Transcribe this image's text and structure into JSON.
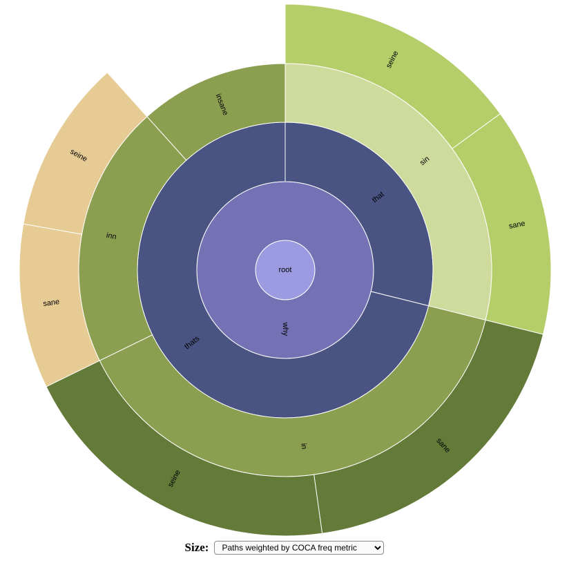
{
  "chart_data": {
    "type": "sunburst",
    "root": {
      "name": "root",
      "color": "#9c9ae0",
      "children": [
        {
          "name": "why",
          "color": "#7472b4",
          "children": [
            {
              "name": "that",
              "color": "#4a5483",
              "children": [
                {
                  "name": "sin",
                  "color": "#cfdb9c",
                  "children": [
                    {
                      "name": "seine",
                      "color": "#b5ce69",
                      "value": 27
                    },
                    {
                      "name": "sane",
                      "color": "#b5ce69",
                      "value": 25
                    }
                  ]
                }
              ]
            },
            {
              "name": "thats",
              "color": "#4a5483",
              "children": [
                {
                  "name": "in",
                  "color": "#8c9f51",
                  "children": [
                    {
                      "name": "sane",
                      "color": "#637a39",
                      "value": 34
                    },
                    {
                      "name": "seine",
                      "color": "#637a39",
                      "value": 36
                    }
                  ]
                },
                {
                  "name": "inn",
                  "color": "#8c9f51",
                  "children": [
                    {
                      "name": "sane",
                      "color": "#e6cc94",
                      "value": 18
                    },
                    {
                      "name": "seine",
                      "color": "#e6cc94",
                      "value": 19
                    }
                  ]
                },
                {
                  "name": "insane",
                  "color": "#8c9f51",
                  "value": 21
                }
              ]
            }
          ]
        }
      ]
    }
  },
  "controls": {
    "size_label": "Size:",
    "size_options": [
      "Paths weighted by COCA freq metric"
    ]
  }
}
